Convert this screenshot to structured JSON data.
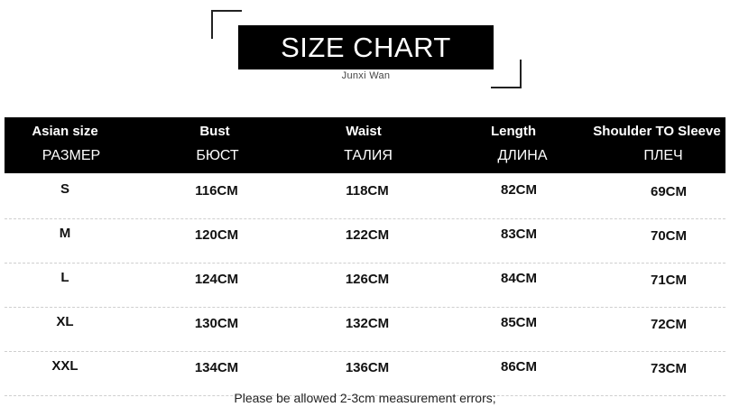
{
  "header": {
    "title": "SIZE CHART",
    "brand": "Junxi Wan"
  },
  "table": {
    "columns_en": [
      "Asian size",
      "Bust",
      "Waist",
      "Length",
      "Shoulder TO Sleeve"
    ],
    "columns_ru": [
      "РАЗМЕР",
      "БЮСТ",
      "ТАЛИЯ",
      "ДЛИНА",
      "ПЛЕЧ"
    ],
    "rows": [
      [
        "S",
        "116CM",
        "118CM",
        "82CM",
        "69CM"
      ],
      [
        "M",
        "120CM",
        "122CM",
        "83CM",
        "70CM"
      ],
      [
        "L",
        "124CM",
        "126CM",
        "84CM",
        "71CM"
      ],
      [
        "XL",
        "130CM",
        "132CM",
        "85CM",
        "72CM"
      ],
      [
        "XXL",
        "134CM",
        "136CM",
        "86CM",
        "73CM"
      ]
    ]
  },
  "footer": {
    "note": "Please be allowed 2-3cm measurement errors;"
  }
}
